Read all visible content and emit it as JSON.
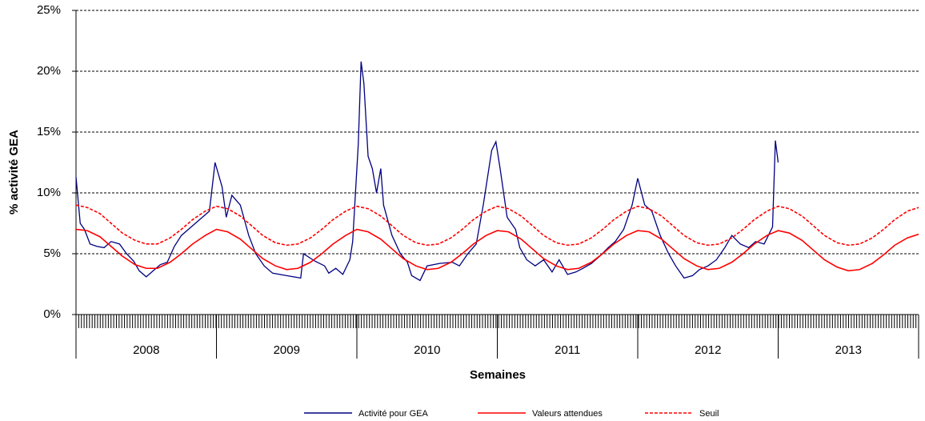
{
  "chart_data": {
    "type": "line",
    "y_axis_label": "% activité GEA",
    "x_axis_label": "Semaines",
    "categories": [
      "2008",
      "2009",
      "2010",
      "2011",
      "2012",
      "2013"
    ],
    "xlim": [
      2008,
      2014
    ],
    "ylim": [
      0,
      25
    ],
    "yticks": [
      {
        "value": 0,
        "label": "0%"
      },
      {
        "value": 5,
        "label": "5%"
      },
      {
        "value": 10,
        "label": "10%"
      },
      {
        "value": 15,
        "label": "15%"
      },
      {
        "value": 20,
        "label": "20%"
      },
      {
        "value": 25,
        "label": "25%"
      }
    ],
    "grid": true,
    "legend": "bottom",
    "series": [
      {
        "name": "Activité pour GEA",
        "color": "#000080",
        "dashed": false,
        "x": [
          2008.0,
          2008.03,
          2008.06,
          2008.1,
          2008.15,
          2008.2,
          2008.25,
          2008.31,
          2008.36,
          2008.41,
          2008.45,
          2008.5,
          2008.55,
          2008.6,
          2008.65,
          2008.7,
          2008.75,
          2008.8,
          2008.85,
          2008.9,
          2008.95,
          2008.99,
          2009.04,
          2009.07,
          2009.11,
          2009.17,
          2009.23,
          2009.28,
          2009.34,
          2009.4,
          2009.5,
          2009.6,
          2009.62,
          2009.7,
          2009.77,
          2009.8,
          2009.85,
          2009.9,
          2009.95,
          2009.97,
          2010.01,
          2010.03,
          2010.05,
          2010.08,
          2010.11,
          2010.14,
          2010.17,
          2010.19,
          2010.25,
          2010.31,
          2010.36,
          2010.39,
          2010.45,
          2010.5,
          2010.59,
          2010.68,
          2010.73,
          2010.79,
          2010.85,
          2010.9,
          2010.96,
          2010.99,
          2011.02,
          2011.07,
          2011.13,
          2011.16,
          2011.21,
          2011.27,
          2011.33,
          2011.39,
          2011.44,
          2011.5,
          2011.56,
          2011.61,
          2011.67,
          2011.73,
          2011.79,
          2011.84,
          2011.9,
          2011.96,
          2012.0,
          2012.05,
          2012.1,
          2012.16,
          2012.22,
          2012.27,
          2012.33,
          2012.39,
          2012.44,
          2012.5,
          2012.56,
          2012.62,
          2012.67,
          2012.73,
          2012.79,
          2012.84,
          2012.9,
          2012.96,
          2012.98,
          2013.0
        ],
        "values": [
          11.3,
          7.5,
          7.0,
          5.8,
          5.6,
          5.5,
          6.0,
          5.8,
          5.0,
          4.4,
          3.6,
          3.1,
          3.6,
          4.1,
          4.3,
          5.6,
          6.5,
          7.0,
          7.5,
          8.0,
          8.5,
          12.5,
          10.5,
          8.0,
          9.8,
          9.0,
          6.5,
          5.0,
          4.0,
          3.4,
          3.2,
          3.0,
          5.0,
          4.4,
          4.0,
          3.4,
          3.8,
          3.3,
          4.5,
          6.0,
          14.0,
          20.8,
          19.0,
          13.0,
          12.0,
          10.0,
          12.0,
          9.0,
          6.5,
          5.0,
          4.3,
          3.2,
          2.8,
          4.0,
          4.2,
          4.3,
          4.0,
          5.0,
          5.8,
          9.0,
          13.5,
          14.2,
          12.0,
          8.0,
          7.0,
          5.5,
          4.5,
          4.0,
          4.5,
          3.5,
          4.5,
          3.3,
          3.5,
          3.8,
          4.2,
          4.8,
          5.5,
          6.0,
          7.0,
          9.0,
          11.2,
          9.0,
          8.5,
          6.5,
          5.0,
          4.0,
          3.0,
          3.2,
          3.7,
          4.0,
          4.5,
          5.5,
          6.5,
          5.8,
          5.5,
          6.0,
          5.8,
          7.2,
          14.3,
          12.5
        ]
      },
      {
        "name": "Valeurs attendues",
        "color": "#ff0000",
        "dashed": false,
        "x": [
          2008.0,
          2008.08,
          2008.17,
          2008.25,
          2008.33,
          2008.42,
          2008.5,
          2008.58,
          2008.67,
          2008.75,
          2008.83,
          2008.92,
          2009.0,
          2009.08,
          2009.17,
          2009.25,
          2009.33,
          2009.42,
          2009.5,
          2009.58,
          2009.67,
          2009.75,
          2009.83,
          2009.92,
          2010.0,
          2010.08,
          2010.17,
          2010.25,
          2010.33,
          2010.42,
          2010.5,
          2010.58,
          2010.67,
          2010.75,
          2010.83,
          2010.92,
          2011.0,
          2011.08,
          2011.17,
          2011.25,
          2011.33,
          2011.42,
          2011.5,
          2011.58,
          2011.67,
          2011.75,
          2011.83,
          2011.92,
          2012.0,
          2012.08,
          2012.17,
          2012.25,
          2012.33,
          2012.42,
          2012.5,
          2012.58,
          2012.67,
          2012.75,
          2012.83,
          2012.92,
          2013.0,
          2013.08,
          2013.17,
          2013.25,
          2013.33,
          2013.42,
          2013.5,
          2013.58,
          2013.67,
          2013.75,
          2013.83,
          2013.92,
          2014.0
        ],
        "values": [
          7.0,
          6.9,
          6.4,
          5.6,
          4.8,
          4.1,
          3.8,
          3.8,
          4.3,
          5.0,
          5.8,
          6.5,
          7.0,
          6.8,
          6.2,
          5.4,
          4.6,
          4.0,
          3.7,
          3.8,
          4.3,
          5.0,
          5.8,
          6.5,
          7.0,
          6.8,
          6.2,
          5.4,
          4.6,
          4.0,
          3.7,
          3.8,
          4.3,
          5.0,
          5.8,
          6.5,
          6.9,
          6.8,
          6.2,
          5.4,
          4.6,
          4.0,
          3.7,
          3.8,
          4.3,
          5.0,
          5.8,
          6.5,
          6.9,
          6.8,
          6.2,
          5.4,
          4.6,
          4.0,
          3.7,
          3.8,
          4.3,
          5.0,
          5.8,
          6.5,
          6.9,
          6.7,
          6.1,
          5.3,
          4.5,
          3.9,
          3.6,
          3.7,
          4.2,
          4.9,
          5.7,
          6.3,
          6.6
        ]
      },
      {
        "name": "Seuil",
        "color": "#ff0000",
        "dashed": true,
        "x": [
          2008.0,
          2008.08,
          2008.17,
          2008.25,
          2008.33,
          2008.42,
          2008.5,
          2008.58,
          2008.67,
          2008.75,
          2008.83,
          2008.92,
          2009.0,
          2009.08,
          2009.17,
          2009.25,
          2009.33,
          2009.42,
          2009.5,
          2009.58,
          2009.67,
          2009.75,
          2009.83,
          2009.92,
          2010.0,
          2010.08,
          2010.17,
          2010.25,
          2010.33,
          2010.42,
          2010.5,
          2010.58,
          2010.67,
          2010.75,
          2010.83,
          2010.92,
          2011.0,
          2011.08,
          2011.17,
          2011.25,
          2011.33,
          2011.42,
          2011.5,
          2011.58,
          2011.67,
          2011.75,
          2011.83,
          2011.92,
          2012.0,
          2012.08,
          2012.17,
          2012.25,
          2012.33,
          2012.42,
          2012.5,
          2012.58,
          2012.67,
          2012.75,
          2012.83,
          2012.92,
          2013.0,
          2013.08,
          2013.17,
          2013.25,
          2013.33,
          2013.42,
          2013.5,
          2013.58,
          2013.67,
          2013.75,
          2013.83,
          2013.92,
          2014.0
        ],
        "values": [
          9.0,
          8.8,
          8.3,
          7.5,
          6.7,
          6.1,
          5.8,
          5.8,
          6.3,
          7.0,
          7.8,
          8.5,
          8.9,
          8.7,
          8.1,
          7.3,
          6.5,
          5.9,
          5.7,
          5.8,
          6.3,
          7.0,
          7.8,
          8.5,
          8.9,
          8.7,
          8.1,
          7.3,
          6.5,
          5.9,
          5.7,
          5.8,
          6.3,
          7.0,
          7.8,
          8.5,
          8.9,
          8.7,
          8.1,
          7.3,
          6.5,
          5.9,
          5.7,
          5.8,
          6.3,
          7.0,
          7.8,
          8.5,
          8.9,
          8.7,
          8.1,
          7.3,
          6.5,
          5.9,
          5.7,
          5.8,
          6.3,
          7.0,
          7.8,
          8.5,
          8.9,
          8.7,
          8.1,
          7.3,
          6.5,
          5.9,
          5.7,
          5.8,
          6.3,
          7.0,
          7.8,
          8.5,
          8.8
        ]
      }
    ]
  }
}
